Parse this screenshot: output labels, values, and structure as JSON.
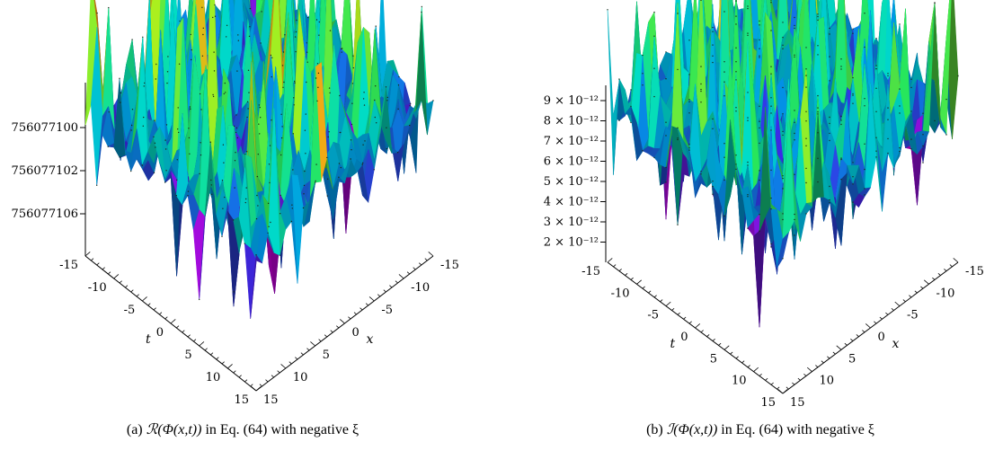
{
  "chart_data": [
    {
      "type": "surface",
      "panel_label": "(a)",
      "caption_prefix": "(a) ",
      "caption_math": "ℛ(Φ(x,t))",
      "caption_suffix": " in Eq. (64) with negative ξ",
      "xlabel": "x",
      "ylabel": "t",
      "x_ticks": [
        "-15",
        "-10",
        "-5",
        "0",
        "5",
        "10",
        "15"
      ],
      "t_ticks": [
        "-15",
        "-10",
        "-5",
        "0",
        "5",
        "10",
        "15"
      ],
      "z_ticks": [
        "756077100",
        "756077102",
        "756077106"
      ],
      "xlim": [
        -15,
        15
      ],
      "tlim": [
        -15,
        15
      ],
      "colormap": "hue (magenta-blue-cyan-green-yellow-red)"
    },
    {
      "type": "surface",
      "panel_label": "(b)",
      "caption_prefix": "(b) ",
      "caption_math": "ℐ(Φ(x,t))",
      "caption_suffix": " in Eq. (64) with negative ξ",
      "xlabel": "x",
      "ylabel": "t",
      "x_ticks": [
        "-15",
        "-10",
        "-5",
        "0",
        "5",
        "10",
        "15"
      ],
      "t_ticks": [
        "-15",
        "-10",
        "-5",
        "0",
        "5",
        "10",
        "15"
      ],
      "z_ticks": [
        "9 × 10⁻¹²",
        "8 × 10⁻¹²",
        "7 × 10⁻¹²",
        "6 × 10⁻¹²",
        "5 × 10⁻¹²",
        "4 × 10⁻¹²",
        "3 × 10⁻¹²",
        "2 × 10⁻¹²"
      ],
      "xlim": [
        -15,
        15
      ],
      "tlim": [
        -15,
        15
      ],
      "colormap": "hue (magenta-blue-cyan-green-yellow-red)"
    }
  ]
}
